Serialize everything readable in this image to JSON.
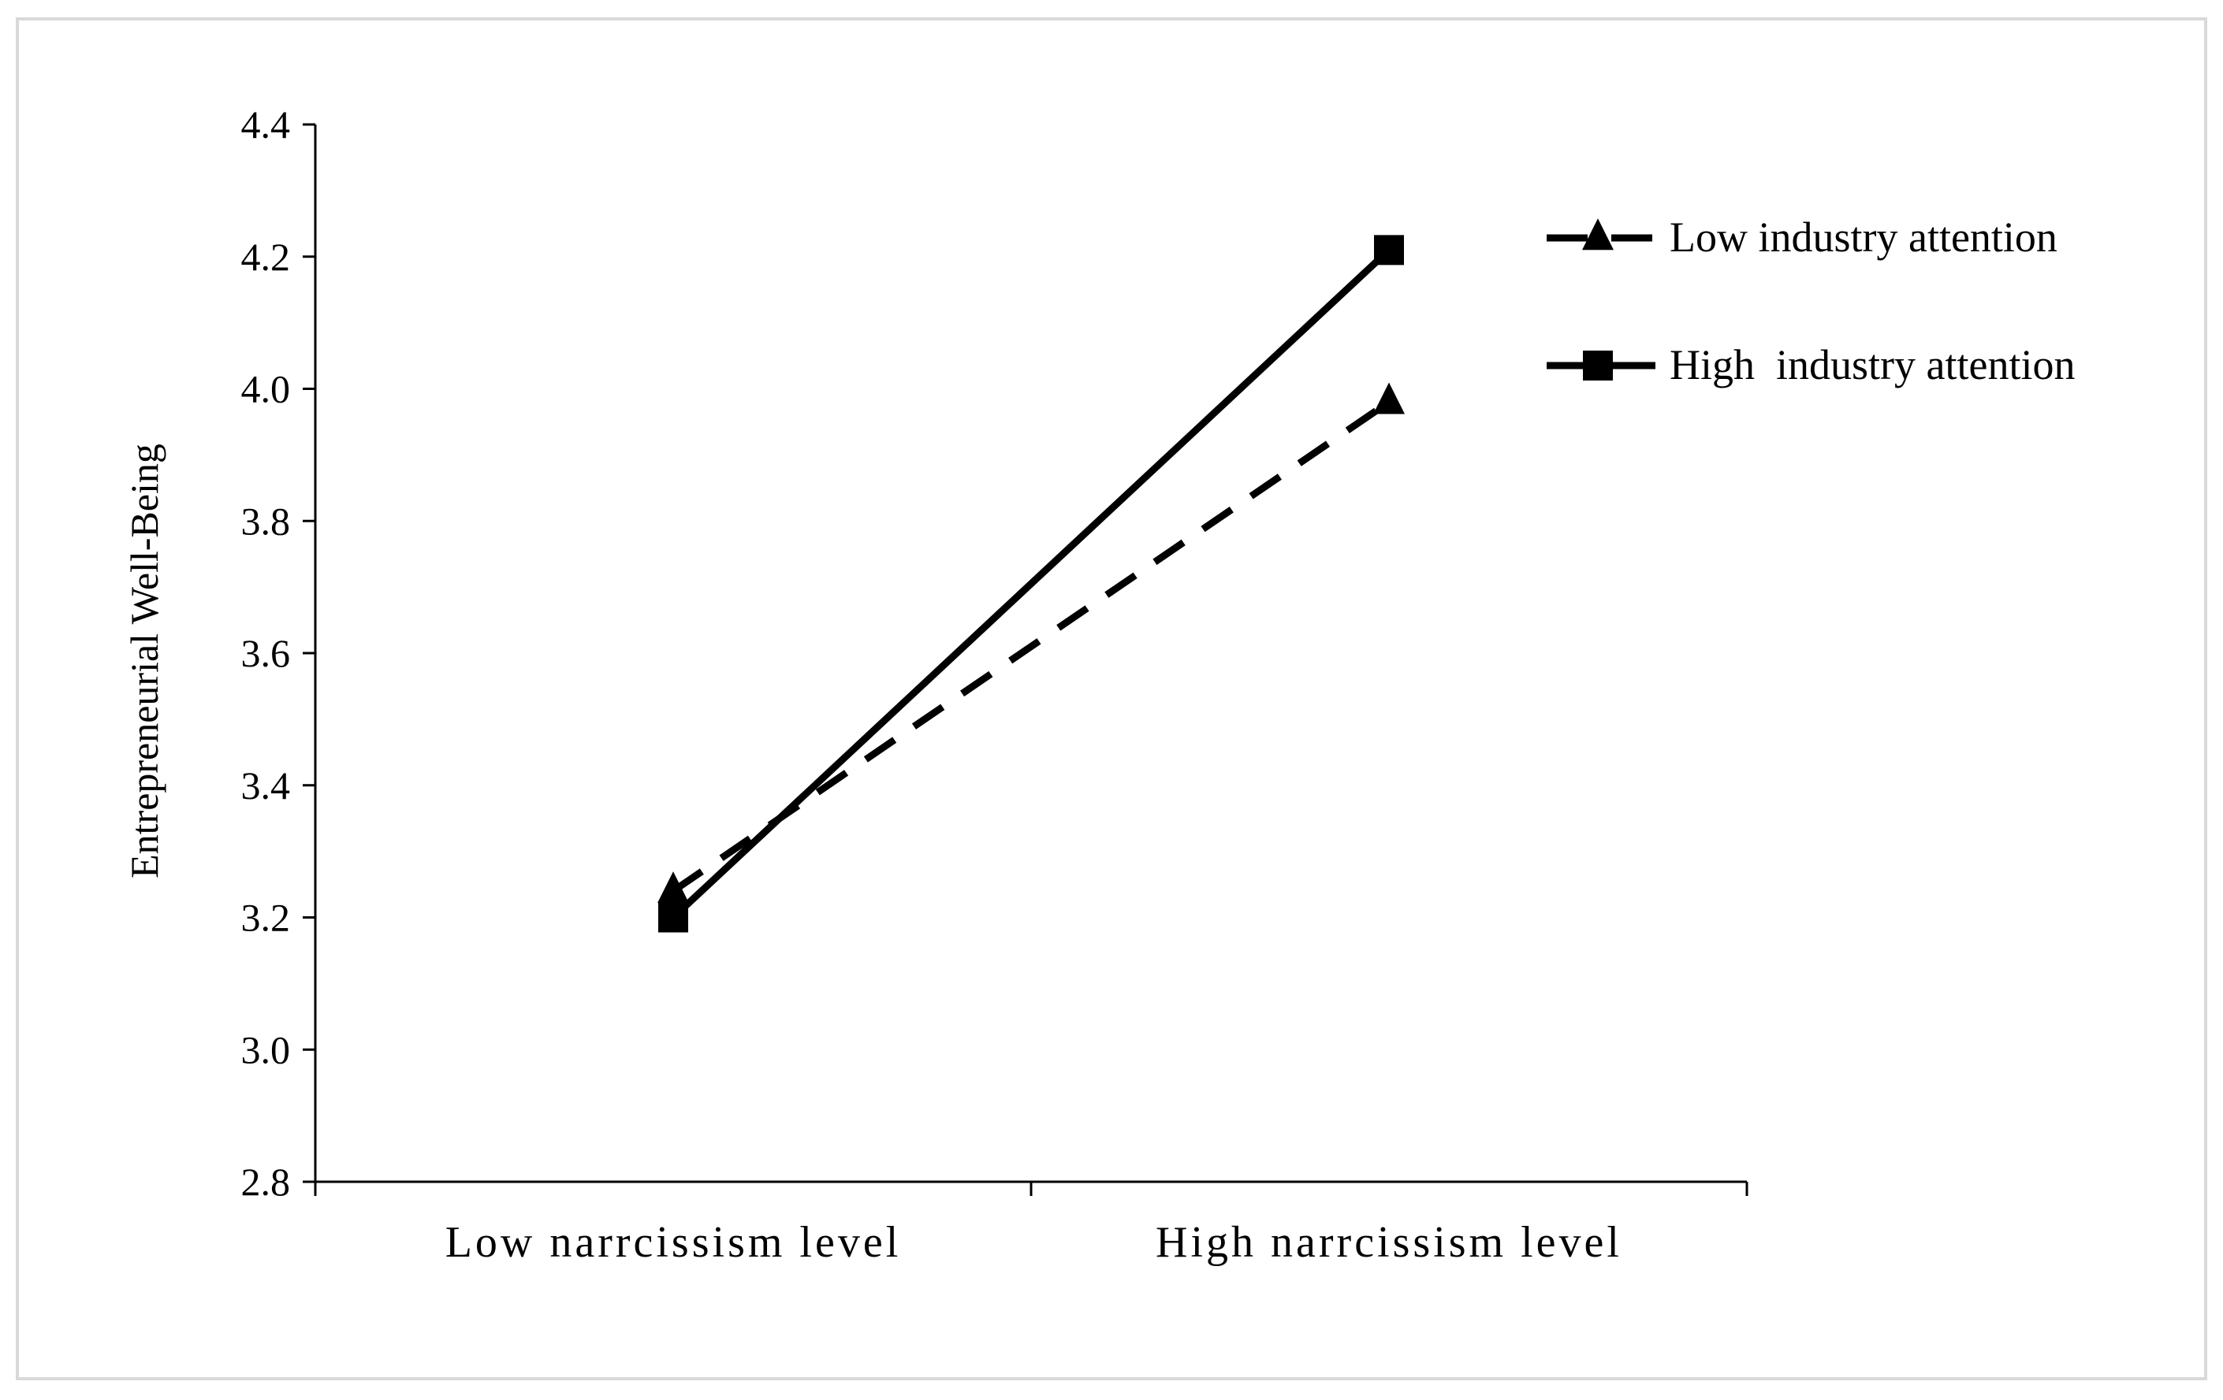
{
  "chart_data": {
    "type": "line",
    "title": "",
    "xlabel": "",
    "ylabel": "Entrepreneurial Well-Being",
    "categories": [
      "Low narrcissism level",
      "High narrcissism level"
    ],
    "ylim": [
      2.8,
      4.4
    ],
    "yticks": [
      "2.8",
      "3.0",
      "3.2",
      "3.4",
      "3.6",
      "3.8",
      "4.0",
      "4.2",
      "4.4"
    ],
    "grid": false,
    "legend_position": "top-right",
    "series": [
      {
        "name": "Low industry attention",
        "values": [
          3.24,
          3.98
        ],
        "line_style": "dashed",
        "marker": "triangle",
        "color": "#000000"
      },
      {
        "name": "High  industry attention",
        "values": [
          3.2,
          4.21
        ],
        "line_style": "solid",
        "marker": "square",
        "color": "#000000"
      }
    ]
  }
}
